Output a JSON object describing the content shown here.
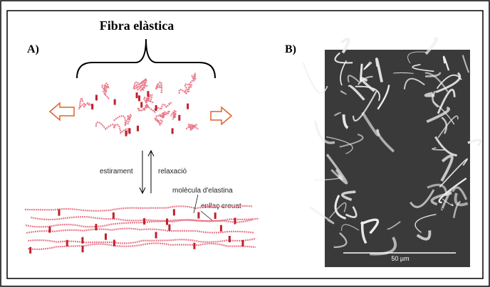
{
  "title": "Fibra elàstica",
  "panels": {
    "a": {
      "label": "A)",
      "stretch_label": "estirament",
      "relax_label": "relaxació",
      "molecule_label": "molècula d'elastina",
      "crosslink_label": "enllaç creuat"
    },
    "b": {
      "label": "B)",
      "scale_label": "50 µm"
    }
  }
}
